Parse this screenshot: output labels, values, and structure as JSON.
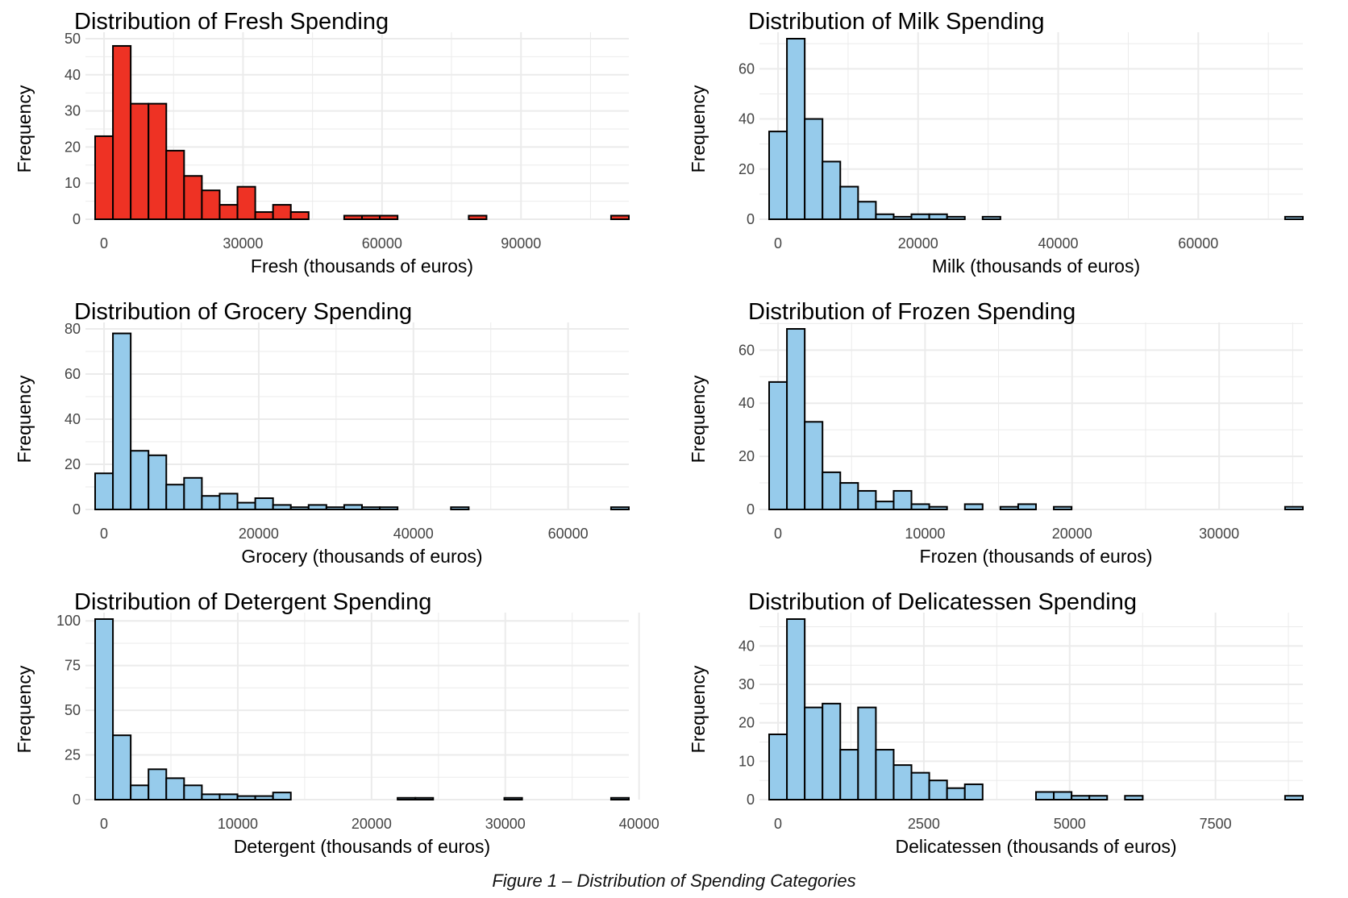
{
  "caption": "Figure 1 – Distribution of Spending Categories",
  "colors": {
    "red_fill": "#EE3224",
    "blue_fill": "#96CBEB",
    "bar_stroke": "#000000",
    "grid": "#EBEBEB"
  },
  "chart_data": [
    {
      "type": "bar",
      "title": "Distribution of Fresh Spending",
      "xlabel": "Fresh (thousands of euros)",
      "ylabel": "Frequency",
      "fill": "#EE3224",
      "bin_width": 3840,
      "bin_start": -1920,
      "counts": [
        23,
        48,
        32,
        32,
        19,
        12,
        8,
        4,
        9,
        2,
        4,
        2,
        0,
        0,
        1,
        1,
        1,
        0,
        0,
        0,
        0,
        1,
        0,
        0,
        0,
        0,
        0,
        0,
        0,
        1
      ],
      "xlim": [
        -1920,
        113280
      ],
      "ylim": [
        0,
        50
      ],
      "xticks": [
        0,
        30000,
        60000,
        90000
      ],
      "xtick_labels": [
        "0",
        "30000",
        "60000",
        "90000"
      ],
      "yticks": [
        0,
        10,
        20,
        30,
        40,
        50
      ],
      "ytick_labels": [
        "0",
        "10",
        "20",
        "30",
        "40",
        "50"
      ]
    },
    {
      "type": "bar",
      "title": "Distribution of Milk Spending",
      "xlabel": "Milk (thousands of euros)",
      "ylabel": "Frequency",
      "fill": "#96CBEB",
      "bin_width": 2540,
      "bin_start": -1270,
      "counts": [
        35,
        72,
        40,
        23,
        13,
        7,
        2,
        1,
        2,
        2,
        1,
        0,
        1,
        0,
        0,
        0,
        0,
        0,
        0,
        0,
        0,
        0,
        0,
        0,
        0,
        0,
        0,
        0,
        0,
        1
      ],
      "xlim": [
        -1270,
        74930
      ],
      "ylim": [
        0,
        72
      ],
      "xticks": [
        0,
        20000,
        40000,
        60000
      ],
      "xtick_labels": [
        "0",
        "20000",
        "40000",
        "60000"
      ],
      "yticks": [
        0,
        20,
        40,
        60
      ],
      "ytick_labels": [
        "0",
        "20",
        "40",
        "60"
      ]
    },
    {
      "type": "bar",
      "title": "Distribution of Grocery Spending",
      "xlabel": "Grocery (thousands of euros)",
      "ylabel": "Frequency",
      "fill": "#96CBEB",
      "bin_width": 2300,
      "bin_start": -1150,
      "counts": [
        16,
        78,
        26,
        24,
        11,
        14,
        6,
        7,
        3,
        5,
        2,
        1,
        2,
        1,
        2,
        1,
        1,
        0,
        0,
        0,
        1,
        0,
        0,
        0,
        0,
        0,
        0,
        0,
        0,
        1
      ],
      "xlim": [
        -1150,
        67850
      ],
      "ylim": [
        0,
        80
      ],
      "xticks": [
        0,
        20000,
        40000,
        60000
      ],
      "xtick_labels": [
        "0",
        "20000",
        "40000",
        "60000"
      ],
      "yticks": [
        0,
        20,
        40,
        60,
        80
      ],
      "ytick_labels": [
        "0",
        "20",
        "40",
        "60",
        "80"
      ]
    },
    {
      "type": "bar",
      "title": "Distribution of Frozen Spending",
      "xlabel": "Frozen (thousands of euros)",
      "ylabel": "Frequency",
      "fill": "#96CBEB",
      "bin_width": 1210,
      "bin_start": -605,
      "counts": [
        48,
        68,
        33,
        14,
        10,
        7,
        3,
        7,
        2,
        1,
        0,
        2,
        0,
        1,
        2,
        0,
        1,
        0,
        0,
        0,
        0,
        0,
        0,
        0,
        0,
        0,
        0,
        0,
        0,
        1
      ],
      "xlim": [
        -605,
        35695
      ],
      "ylim": [
        0,
        68
      ],
      "xticks": [
        0,
        10000,
        20000,
        30000
      ],
      "xtick_labels": [
        "0",
        "10000",
        "20000",
        "30000"
      ],
      "yticks": [
        0,
        20,
        40,
        60
      ],
      "ytick_labels": [
        "0",
        "20",
        "40",
        "60"
      ]
    },
    {
      "type": "bar",
      "title": "Distribution of Detergent Spending",
      "xlabel": "Detergent (thousands of euros)",
      "ylabel": "Frequency",
      "fill": "#96CBEB",
      "bin_width": 1330,
      "bin_start": -665,
      "counts": [
        101,
        36,
        8,
        17,
        12,
        8,
        3,
        3,
        2,
        2,
        4,
        0,
        0,
        0,
        0,
        0,
        0,
        1,
        1,
        0,
        0,
        0,
        0,
        1,
        0,
        0,
        0,
        0,
        0,
        1
      ],
      "xlim": [
        -665,
        39235
      ],
      "ylim": [
        0,
        101
      ],
      "xticks": [
        0,
        10000,
        20000,
        30000,
        40000
      ],
      "xtick_labels": [
        "0",
        "10000",
        "20000",
        "30000",
        "40000"
      ],
      "yticks": [
        0,
        25,
        50,
        75,
        100
      ],
      "ytick_labels": [
        "0",
        "25",
        "50",
        "75",
        "100"
      ]
    },
    {
      "type": "bar",
      "title": "Distribution of Delicatessen Spending",
      "xlabel": "Delicatessen (thousands of euros)",
      "ylabel": "Frequency",
      "fill": "#96CBEB",
      "bin_width": 305,
      "bin_start": -152.5,
      "counts": [
        17,
        47,
        24,
        25,
        13,
        24,
        13,
        9,
        7,
        5,
        3,
        4,
        0,
        0,
        0,
        2,
        2,
        1,
        1,
        0,
        1,
        0,
        0,
        0,
        0,
        0,
        0,
        0,
        0,
        1
      ],
      "xlim": [
        -152.5,
        8997.5
      ],
      "ylim": [
        0,
        47
      ],
      "xticks": [
        0,
        2500,
        5000,
        7500
      ],
      "xtick_labels": [
        "0",
        "2500",
        "5000",
        "7500"
      ],
      "yticks": [
        0,
        10,
        20,
        30,
        40
      ],
      "ytick_labels": [
        "0",
        "10",
        "20",
        "30",
        "40"
      ]
    }
  ]
}
